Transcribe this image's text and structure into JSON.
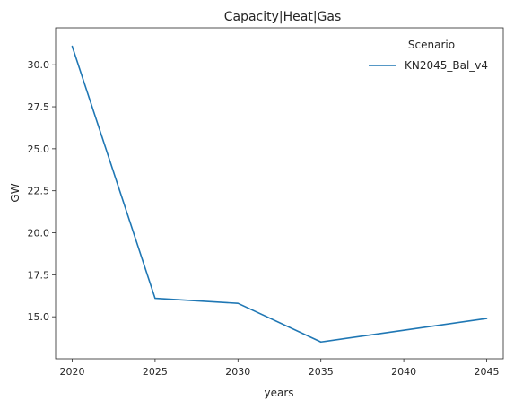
{
  "chart_data": {
    "type": "line",
    "title": "Capacity|Heat|Gas",
    "xlabel": "years",
    "ylabel": "GW",
    "x": [
      2020,
      2025,
      2030,
      2035,
      2040,
      2045
    ],
    "xlim": [
      2019,
      2046
    ],
    "ylim": [
      12.5,
      32.2
    ],
    "xticks": [
      2020,
      2025,
      2030,
      2035,
      2040,
      2045
    ],
    "yticks": [
      15.0,
      17.5,
      20.0,
      22.5,
      25.0,
      27.5,
      30.0
    ],
    "ytick_labels": [
      "15.0",
      "17.5",
      "20.0",
      "22.5",
      "25.0",
      "27.5",
      "30.0"
    ],
    "grid": false,
    "legend": {
      "title": "Scenario",
      "placement": "top-right"
    },
    "series": [
      {
        "name": "KN2045_Bal_v4",
        "color": "#1f77b4",
        "values": [
          31.1,
          16.1,
          15.8,
          13.5,
          14.2,
          14.9
        ]
      }
    ]
  }
}
